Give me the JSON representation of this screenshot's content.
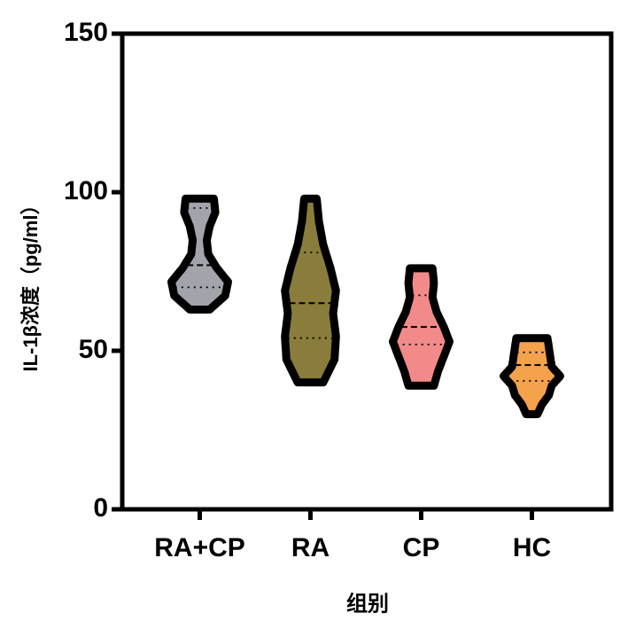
{
  "chart_data": {
    "type": "violin",
    "y_label": "IL-1β浓度（pg/ml）",
    "x_label": "组别",
    "categories": [
      "RA+CP",
      "RA",
      "CP",
      "HC"
    ],
    "violins": [
      {
        "color": "#a3a3ab",
        "min": 63,
        "q1": 70,
        "median": 77,
        "q3": 95,
        "max": 98,
        "density": [
          0.35,
          0.9,
          1.0,
          0.6,
          0.3,
          0.25,
          0.35,
          0.55,
          0.5
        ]
      },
      {
        "color": "#8a7c3a",
        "min": 40,
        "q1": 54,
        "median": 65,
        "q3": 81,
        "max": 98,
        "density": [
          0.45,
          0.85,
          0.9,
          0.8,
          0.9,
          0.7,
          0.45,
          0.3,
          0.22
        ]
      },
      {
        "color": "#f28a8a",
        "min": 39,
        "q1": 52,
        "median": 57.5,
        "q3": 67.5,
        "max": 76,
        "density": [
          0.45,
          0.6,
          0.8,
          1.0,
          0.8,
          0.55,
          0.4,
          0.45,
          0.4
        ]
      },
      {
        "color": "#f5a24c",
        "min": 30,
        "q1": 40.5,
        "median": 45.5,
        "q3": 49.5,
        "max": 54,
        "density": [
          0.2,
          0.35,
          0.6,
          0.7,
          1.0,
          0.7,
          0.65,
          0.6,
          0.55
        ]
      }
    ],
    "ylim": [
      0,
      150
    ],
    "yticks": [
      0,
      50,
      100,
      150
    ]
  }
}
